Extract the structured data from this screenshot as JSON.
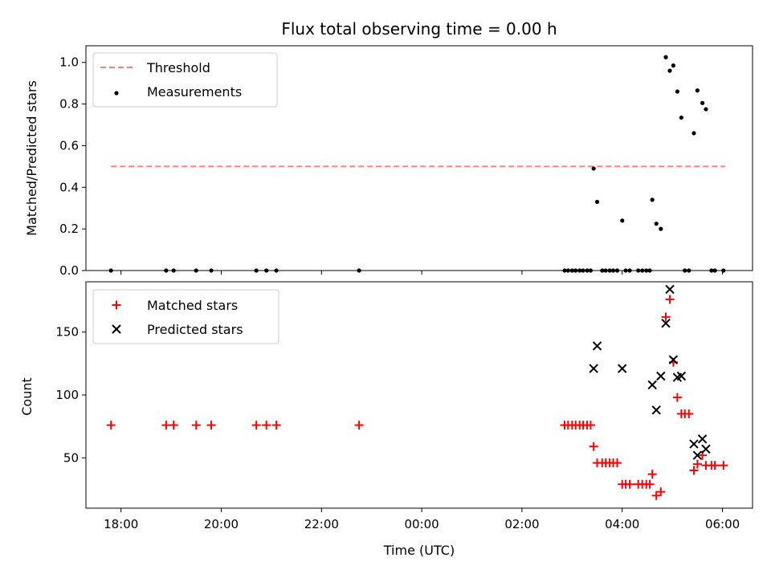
{
  "chart_data": [
    {
      "type": "scatter",
      "title": "Flux total observing time = 0.00 h",
      "xlabel": "",
      "ylabel": "Matched/Predicted stars",
      "ylim": [
        0,
        1.08
      ],
      "yticks": [
        0.0,
        0.2,
        0.4,
        0.6,
        0.8,
        1.0
      ],
      "ytick_labels": [
        "0.0",
        "0.2",
        "0.4",
        "0.6",
        "0.8",
        "1.0"
      ],
      "xlim": [
        -6.7,
        6.6
      ],
      "xticks": [
        -6,
        -4,
        -2,
        0,
        2,
        4,
        6
      ],
      "show_x_tick_labels": false,
      "legend": {
        "placement": "top-left",
        "entries": [
          "Threshold",
          "Measurements"
        ]
      },
      "threshold": {
        "name": "Threshold",
        "y": 0.5,
        "x_range": [
          -6.2,
          6.05
        ],
        "color": "#ff7f7f",
        "style": "dashed"
      },
      "series": [
        {
          "name": "Measurements",
          "marker": "dot",
          "color": "#000000",
          "x": [
            -6.2,
            -5.1,
            -4.95,
            -4.5,
            -4.2,
            -3.3,
            -3.1,
            -2.9,
            -1.25,
            2.85,
            2.92,
            3.0,
            3.07,
            3.15,
            3.22,
            3.3,
            3.37,
            3.43,
            3.5,
            3.6,
            3.67,
            3.75,
            3.82,
            3.9,
            4.0,
            4.07,
            4.15,
            4.32,
            4.4,
            4.48,
            4.55,
            4.6,
            4.68,
            4.77,
            4.87,
            4.95,
            5.02,
            5.1,
            5.18,
            5.25,
            5.33,
            5.43,
            5.5,
            5.6,
            5.67,
            5.78,
            5.85,
            6.02
          ],
          "y": [
            0,
            0,
            0,
            0,
            0,
            0,
            0,
            0,
            0,
            0,
            0,
            0,
            0,
            0,
            0,
            0,
            0,
            0.49,
            0.33,
            0,
            0,
            0,
            0,
            0,
            0.24,
            0,
            0,
            0,
            0,
            0,
            0,
            0.34,
            0.225,
            0.2,
            1.025,
            0.96,
            0.985,
            0.86,
            0.735,
            0,
            0,
            0.66,
            0.865,
            0.805,
            0.775,
            0,
            0,
            0
          ]
        }
      ]
    },
    {
      "type": "scatter",
      "title": "",
      "xlabel": "Time (UTC)",
      "ylabel": "Count",
      "ylim": [
        10,
        190
      ],
      "yticks": [
        50,
        100,
        150
      ],
      "ytick_labels": [
        "50",
        "100",
        "150"
      ],
      "xlim": [
        -6.7,
        6.6
      ],
      "xticks": [
        -6,
        -4,
        -2,
        0,
        2,
        4,
        6
      ],
      "xtick_labels": [
        "18:00",
        "20:00",
        "22:00",
        "00:00",
        "02:00",
        "04:00",
        "06:00"
      ],
      "legend": {
        "placement": "top-left",
        "entries": [
          "Matched stars",
          "Predicted stars"
        ]
      },
      "series": [
        {
          "name": "Matched stars",
          "marker": "plus",
          "color": "#ff0000",
          "x": [
            -6.2,
            -5.1,
            -4.95,
            -4.5,
            -4.2,
            -3.3,
            -3.1,
            -2.9,
            -1.25,
            2.85,
            2.92,
            3.0,
            3.07,
            3.15,
            3.22,
            3.3,
            3.37,
            3.43,
            3.5,
            3.6,
            3.67,
            3.75,
            3.82,
            3.9,
            4.0,
            4.07,
            4.15,
            4.32,
            4.4,
            4.48,
            4.55,
            4.6,
            4.68,
            4.77,
            4.87,
            4.95,
            5.02,
            5.1,
            5.18,
            5.25,
            5.33,
            5.43,
            5.5,
            5.6,
            5.67,
            5.78,
            5.85,
            6.02
          ],
          "y": [
            76,
            76,
            76,
            76,
            76,
            76,
            76,
            76,
            76,
            76,
            76,
            76,
            76,
            76,
            76,
            76,
            76,
            59,
            46,
            46,
            46,
            46,
            46,
            46,
            29,
            29,
            29,
            29,
            29,
            29,
            29,
            37,
            20,
            23,
            162,
            176,
            126,
            98,
            85,
            85,
            85,
            40,
            45,
            52,
            44,
            44,
            44,
            44
          ]
        },
        {
          "name": "Predicted stars",
          "marker": "x",
          "color": "#000000",
          "x": [
            3.43,
            3.5,
            4.0,
            4.6,
            4.68,
            4.77,
            4.87,
            4.95,
            5.02,
            5.1,
            5.18,
            5.43,
            5.5,
            5.6,
            5.67
          ],
          "y": [
            121,
            139,
            121,
            108,
            88,
            115,
            157,
            184,
            128,
            114,
            115,
            61,
            52,
            65,
            57
          ]
        }
      ]
    }
  ]
}
